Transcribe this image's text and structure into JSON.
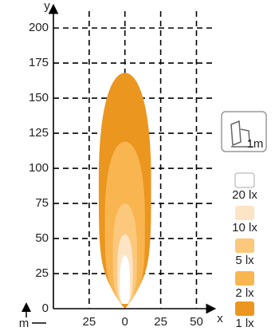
{
  "chart_data": {
    "type": "isolux",
    "x_label": "x",
    "y_label": "y",
    "unit_label": "m",
    "icon_label": "1m",
    "xlim": [
      -50,
      62
    ],
    "ylim": [
      0,
      212
    ],
    "xticks": [
      {
        "value": -25,
        "label": "25"
      },
      0,
      25,
      50
    ],
    "yticks": [
      0,
      25,
      50,
      75,
      100,
      125,
      150,
      175,
      200
    ],
    "grid": true,
    "series": [
      {
        "name": "1 lx",
        "color": "#ea961f",
        "reach": 168,
        "half_width": 18.3
      },
      {
        "name": "2 lx",
        "color": "#f9b54f",
        "reach": 119,
        "half_width": 14
      },
      {
        "name": "5 lx",
        "color": "#fbc87c",
        "reach": 75,
        "half_width": 8.5
      },
      {
        "name": "10 lx",
        "color": "#fde4c4",
        "reach": 53,
        "half_width": 5.5
      },
      {
        "name": "20 lx",
        "color": "#ffffff",
        "reach": 38,
        "half_width": 3.5
      }
    ]
  }
}
